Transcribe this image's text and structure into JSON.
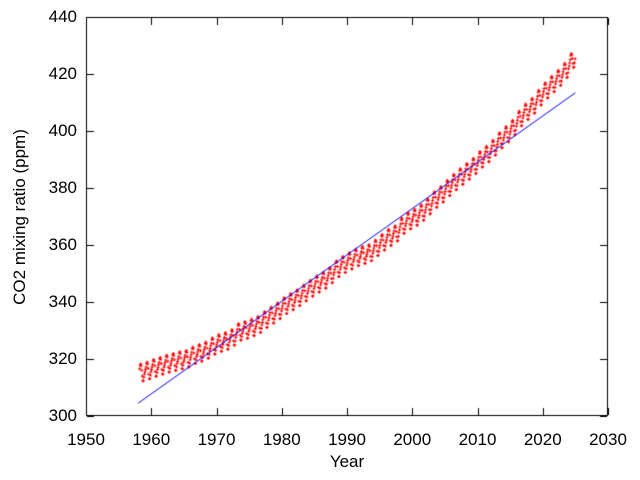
{
  "chart_data": {
    "type": "scatter",
    "title": "",
    "xlabel": "Year",
    "ylabel": "CO2 mixing ratio (ppm)",
    "xlim": [
      1950,
      2030
    ],
    "ylim": [
      300,
      440
    ],
    "x_ticks": [
      1950,
      1960,
      1970,
      1980,
      1990,
      2000,
      2010,
      2020,
      2030
    ],
    "y_ticks": [
      300,
      320,
      340,
      360,
      380,
      400,
      420,
      440
    ],
    "grid": false,
    "legend": "none",
    "tick_direction": "in",
    "mirror_ticks": true,
    "frame_color": "#000000",
    "background_color": "#ffffff",
    "series": [
      {
        "name": "monthly-co2-observations",
        "type": "points",
        "marker": "small-plus-dot",
        "color": "#ff0000",
        "start": 1958.17,
        "end": 2024.99,
        "years": [
          1958,
          1959,
          1960,
          1961,
          1962,
          1963,
          1964,
          1965,
          1966,
          1967,
          1968,
          1969,
          1970,
          1971,
          1972,
          1973,
          1974,
          1975,
          1976,
          1977,
          1978,
          1979,
          1980,
          1981,
          1982,
          1983,
          1984,
          1985,
          1986,
          1987,
          1988,
          1989,
          1990,
          1991,
          1992,
          1993,
          1994,
          1995,
          1996,
          1997,
          1998,
          1999,
          2000,
          2001,
          2002,
          2003,
          2004,
          2005,
          2006,
          2007,
          2008,
          2009,
          2010,
          2011,
          2012,
          2013,
          2014,
          2015,
          2016,
          2017,
          2018,
          2019,
          2020,
          2021,
          2022,
          2023,
          2024
        ],
        "annual_means": [
          315.34,
          315.98,
          316.91,
          317.64,
          318.45,
          318.99,
          319.62,
          320.04,
          321.37,
          322.18,
          323.05,
          324.62,
          325.68,
          326.32,
          327.46,
          329.68,
          330.19,
          331.12,
          332.03,
          333.84,
          335.41,
          336.84,
          338.76,
          340.12,
          341.48,
          343.15,
          344.87,
          346.35,
          347.61,
          349.31,
          351.69,
          353.2,
          354.45,
          355.7,
          356.54,
          357.21,
          358.96,
          360.97,
          362.74,
          363.88,
          366.84,
          368.54,
          369.71,
          371.32,
          373.45,
          375.98,
          377.7,
          379.98,
          382.09,
          384.02,
          385.83,
          387.64,
          390.1,
          391.85,
          394.06,
          396.74,
          398.81,
          401.01,
          404.41,
          406.76,
          408.72,
          411.66,
          414.24,
          416.45,
          418.56,
          421.08,
          424.61
        ],
        "seasonal_cycle_by_month": [
          -0.2,
          0.6,
          1.4,
          2.6,
          3.0,
          2.3,
          0.7,
          -1.4,
          -3.1,
          -3.2,
          -2.0,
          -0.9
        ]
      },
      {
        "name": "linear-fit",
        "type": "line",
        "color": "#0000ff",
        "x": [
          1958,
          2025
        ],
        "y": [
          304.5,
          413.4
        ]
      }
    ]
  }
}
